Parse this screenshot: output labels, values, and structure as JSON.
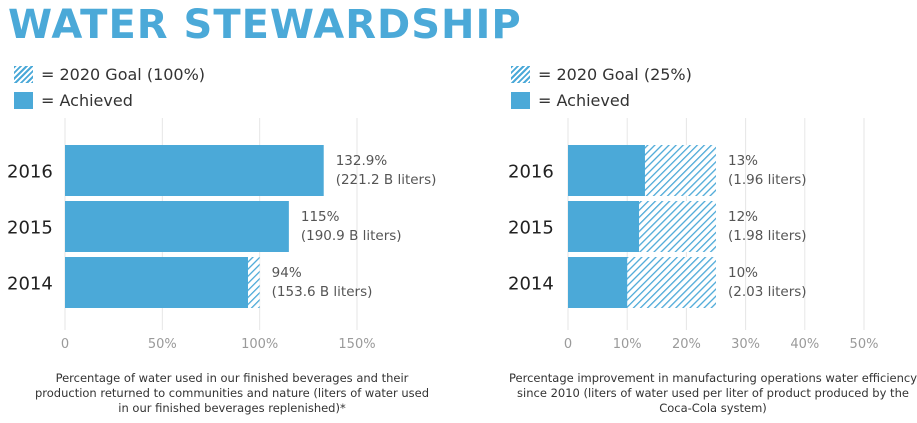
{
  "title": "WATER STEWARDSHIP",
  "colors": {
    "accent": "#4ba9d8",
    "grid": "#e6e6e6",
    "text": "#333333",
    "tick": "#9a9a9a"
  },
  "legends": [
    {
      "goal_label": "= 2020 Goal (100%)",
      "achieved_label": "= Achieved"
    },
    {
      "goal_label": "= 2020 Goal (25%)",
      "achieved_label": "= Achieved"
    }
  ],
  "chart_data": [
    {
      "type": "bar",
      "orientation": "horizontal",
      "categories": [
        "2016",
        "2015",
        "2014"
      ],
      "series": [
        {
          "name": "2020 Goal (100%)",
          "values": [
            100,
            100,
            100
          ]
        },
        {
          "name": "Achieved",
          "values": [
            132.9,
            115,
            94
          ]
        }
      ],
      "data_labels": [
        {
          "pct": "132.9%",
          "detail": "(221.2 B liters)"
        },
        {
          "pct": "115%",
          "detail": "(190.9 B liters)"
        },
        {
          "pct": "94%",
          "detail": "(153.6 B liters)"
        }
      ],
      "xlim": [
        0,
        150
      ],
      "xticks": [
        "0",
        "50%",
        "100%",
        "150%"
      ],
      "xtick_values": [
        0,
        50,
        100,
        150
      ],
      "caption": "Percentage of water used in our finished beverages and their production returned to communities and nature (liters of water used in our finished beverages replenished)*"
    },
    {
      "type": "bar",
      "orientation": "horizontal",
      "categories": [
        "2016",
        "2015",
        "2014"
      ],
      "series": [
        {
          "name": "2020 Goal (25%)",
          "values": [
            25,
            25,
            25
          ]
        },
        {
          "name": "Achieved",
          "values": [
            13,
            12,
            10
          ]
        }
      ],
      "data_labels": [
        {
          "pct": "13%",
          "detail": "(1.96 liters)"
        },
        {
          "pct": "12%",
          "detail": "(1.98 liters)"
        },
        {
          "pct": "10%",
          "detail": "(2.03 liters)"
        }
      ],
      "xlim": [
        0,
        50
      ],
      "xticks": [
        "0",
        "10%",
        "20%",
        "30%",
        "40%",
        "50%"
      ],
      "xtick_values": [
        0,
        10,
        20,
        30,
        40,
        50
      ],
      "caption": "Percentage improvement in manufacturing operations water efficiency since 2010 (liters of water used per liter of product produced by the Coca-Cola system)"
    }
  ]
}
